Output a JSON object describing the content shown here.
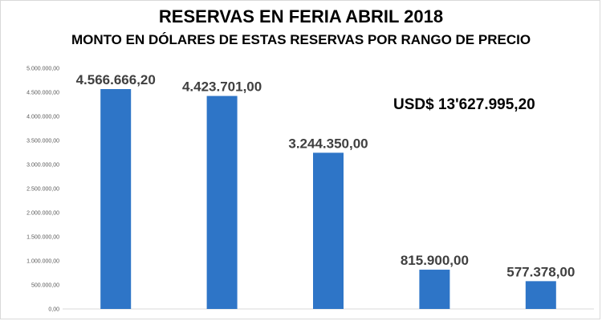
{
  "chart_data": {
    "type": "bar",
    "title": "RESERVAS EN FERIA ABRIL 2018",
    "subtitle": "MONTO EN DÓLARES DE ESTAS RESERVAS POR RANGO DE PRECIO",
    "annotation": "USD$ 13'627.995,20",
    "categories": [
      "",
      "",
      "",
      "",
      ""
    ],
    "values": [
      4566666.2,
      4423701.0,
      3244350.0,
      815900.0,
      577378.0
    ],
    "value_labels": [
      "4.566.666,20",
      "4.423.701,00",
      "3.244.350,00",
      "815.900,00",
      "577.378,00"
    ],
    "ylim": [
      0,
      5000000
    ],
    "yticks": [
      0,
      500000,
      1000000,
      1500000,
      2000000,
      2500000,
      3000000,
      3500000,
      4000000,
      4500000,
      5000000
    ],
    "ytick_labels": [
      "0,00",
      "500.000,00",
      "1.000.000,00",
      "1.500.000,00",
      "2.000.000,00",
      "2.500.000,00",
      "3.000.000,00",
      "3.500.000,00",
      "4.000.000,00",
      "4.500.000,00",
      "5.000.000,00"
    ],
    "grid": false,
    "bar_color": "#2e75c7",
    "xlabel": "",
    "ylabel": ""
  }
}
